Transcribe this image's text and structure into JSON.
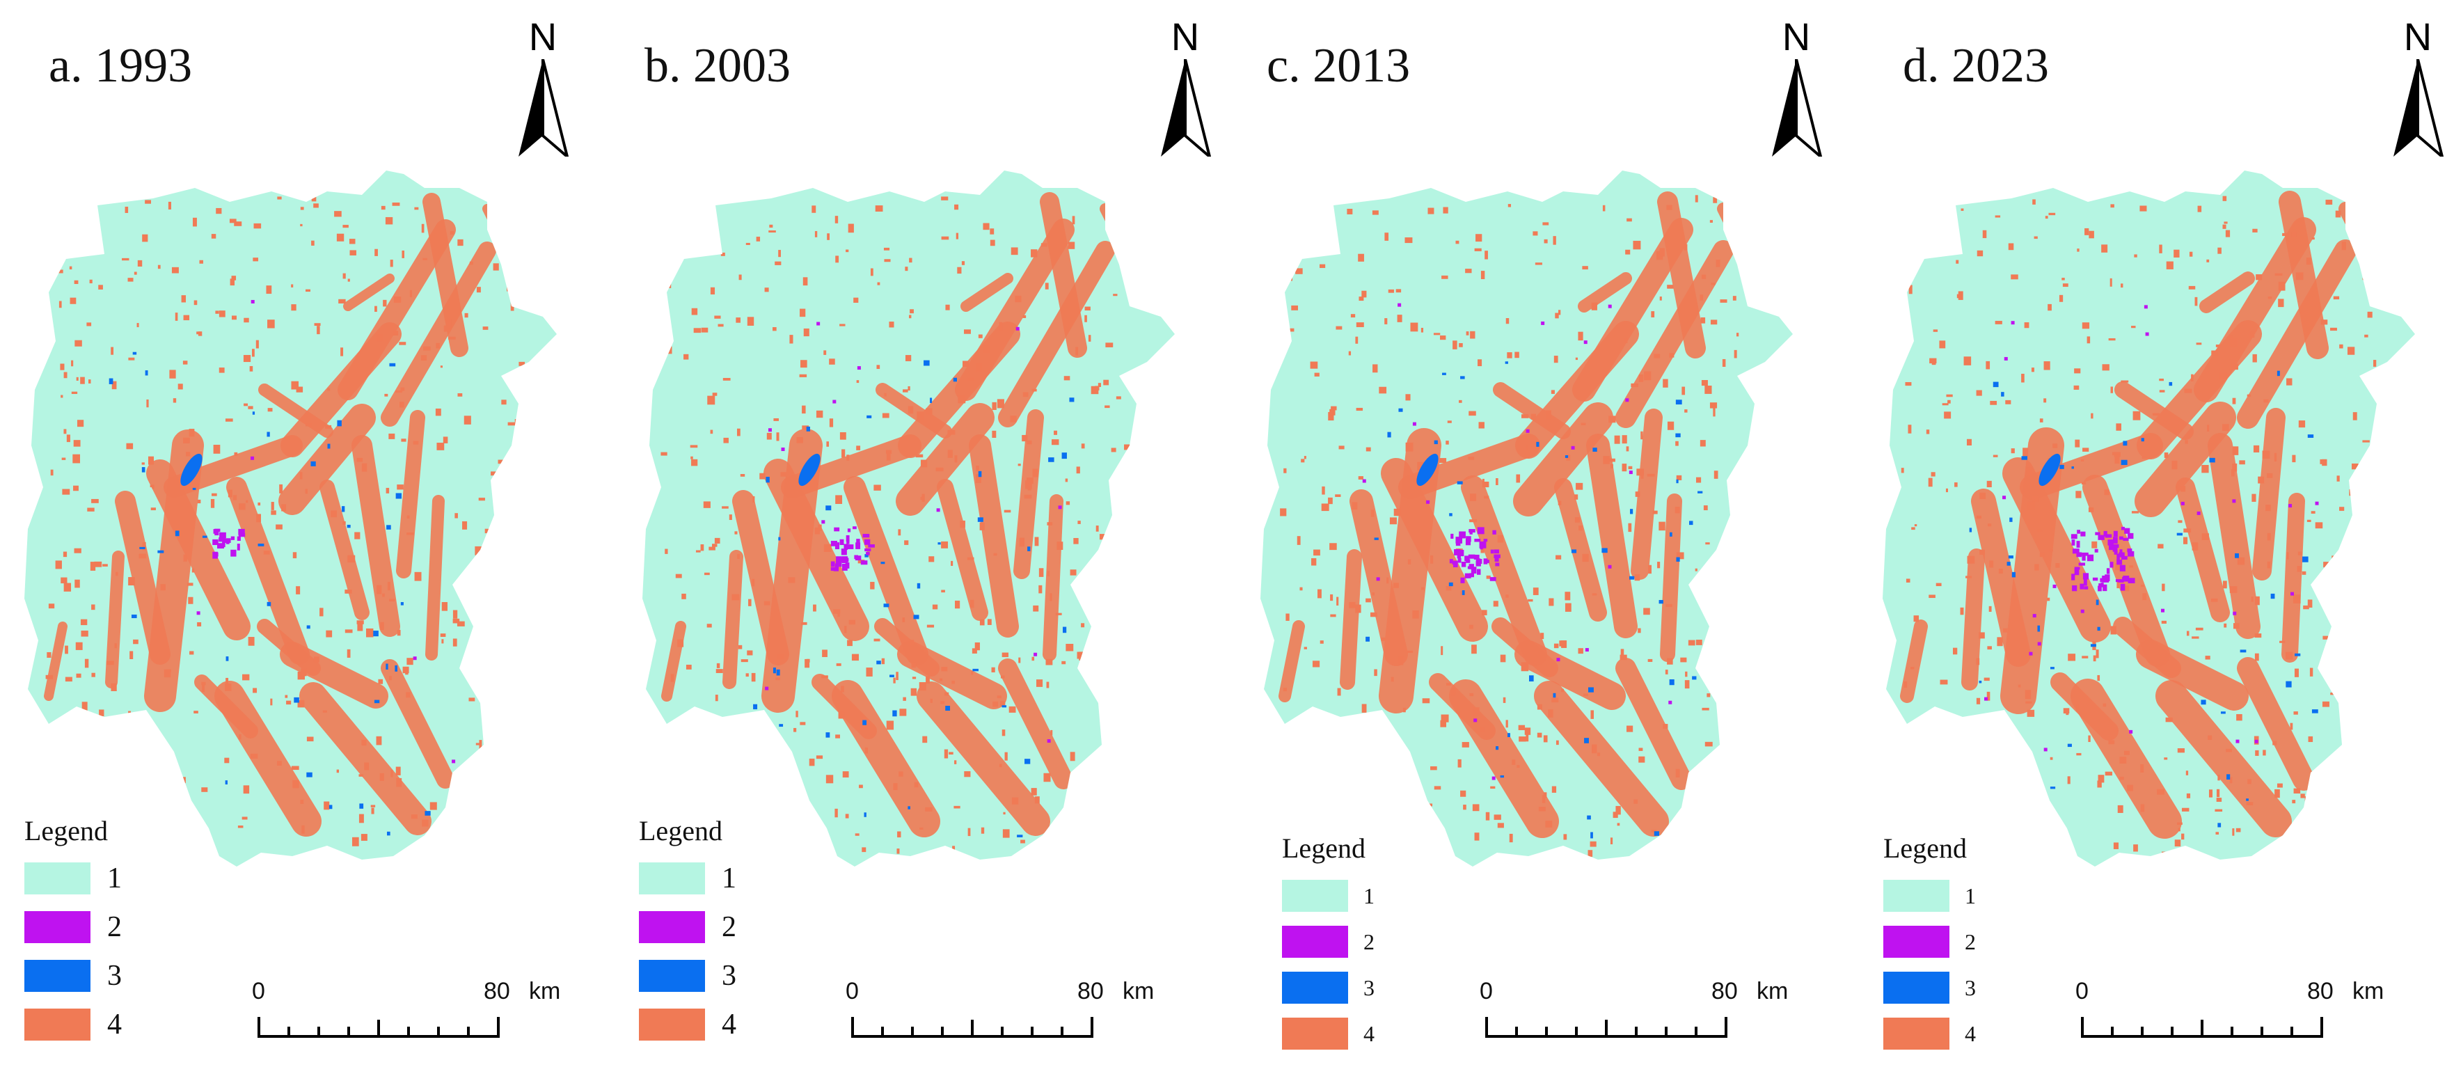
{
  "panels": [
    {
      "title": "a. 1993"
    },
    {
      "title": "b. 2003"
    },
    {
      "title": "c. 2013"
    },
    {
      "title": "d. 2023"
    }
  ],
  "north_label": "N",
  "legend": {
    "title": "Legend",
    "items": [
      {
        "label": "1",
        "color": "#b5f5e2"
      },
      {
        "label": "2",
        "color": "#bf12f0"
      },
      {
        "label": "3",
        "color": "#0a6ff0"
      },
      {
        "label": "4",
        "color": "#f07a55"
      }
    ]
  },
  "scale": {
    "start": "0",
    "end": "80",
    "unit": "km"
  },
  "colors": {
    "land": "#b5f5e2",
    "class4": "#f07a55",
    "class2": "#bf12f0",
    "class3": "#0a6ff0"
  }
}
